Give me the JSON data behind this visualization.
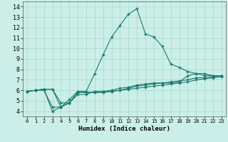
{
  "title": "",
  "xlabel": "Humidex (Indice chaleur)",
  "bg_color": "#cceee8",
  "line_color": "#1a7a6e",
  "grid_color": "#aaddcc",
  "xlim": [
    -0.5,
    23.5
  ],
  "ylim": [
    3.5,
    14.5
  ],
  "xticks": [
    0,
    1,
    2,
    3,
    4,
    5,
    6,
    7,
    8,
    9,
    10,
    11,
    12,
    13,
    14,
    15,
    16,
    17,
    18,
    19,
    20,
    21,
    22,
    23
  ],
  "yticks": [
    4,
    5,
    6,
    7,
    8,
    9,
    10,
    11,
    12,
    13,
    14
  ],
  "series": [
    {
      "x": [
        0,
        1,
        2,
        3,
        4,
        5,
        6,
        7,
        8,
        9,
        10,
        11,
        12,
        13,
        14,
        15,
        16,
        17,
        18,
        19,
        20,
        21,
        22,
        23
      ],
      "y": [
        5.9,
        6.0,
        6.1,
        4.0,
        4.4,
        5.1,
        5.9,
        5.9,
        7.6,
        9.4,
        11.1,
        12.2,
        13.3,
        13.8,
        11.4,
        11.1,
        10.2,
        8.5,
        8.2,
        7.8,
        7.6,
        7.4,
        7.4,
        7.4
      ]
    },
    {
      "x": [
        0,
        1,
        2,
        3,
        4,
        5,
        6,
        7,
        8,
        9,
        10,
        11,
        12,
        13,
        14,
        15,
        16,
        17,
        18,
        19,
        20,
        21,
        22,
        23
      ],
      "y": [
        5.9,
        6.0,
        6.1,
        6.1,
        4.4,
        4.8,
        5.8,
        5.8,
        5.8,
        5.8,
        5.9,
        6.0,
        6.1,
        6.2,
        6.3,
        6.4,
        6.5,
        6.6,
        6.7,
        6.8,
        7.0,
        7.1,
        7.2,
        7.3
      ]
    },
    {
      "x": [
        0,
        1,
        2,
        3,
        4,
        5,
        6,
        7,
        8,
        9,
        10,
        11,
        12,
        13,
        14,
        15,
        16,
        17,
        18,
        19,
        20,
        21,
        22,
        23
      ],
      "y": [
        5.9,
        6.0,
        6.1,
        6.1,
        4.8,
        4.8,
        5.8,
        5.8,
        5.8,
        5.8,
        5.9,
        6.0,
        6.2,
        6.4,
        6.5,
        6.6,
        6.7,
        6.8,
        6.9,
        7.0,
        7.2,
        7.2,
        7.3,
        7.4
      ]
    },
    {
      "x": [
        0,
        1,
        2,
        3,
        4,
        5,
        6,
        7,
        8,
        9,
        10,
        11,
        12,
        13,
        14,
        15,
        16,
        17,
        18,
        19,
        20,
        21,
        22,
        23
      ],
      "y": [
        5.9,
        6.0,
        6.0,
        4.4,
        4.4,
        4.8,
        5.6,
        5.6,
        5.9,
        5.9,
        6.0,
        6.2,
        6.3,
        6.5,
        6.6,
        6.7,
        6.7,
        6.7,
        6.8,
        7.4,
        7.6,
        7.6,
        7.4,
        7.4
      ]
    }
  ]
}
